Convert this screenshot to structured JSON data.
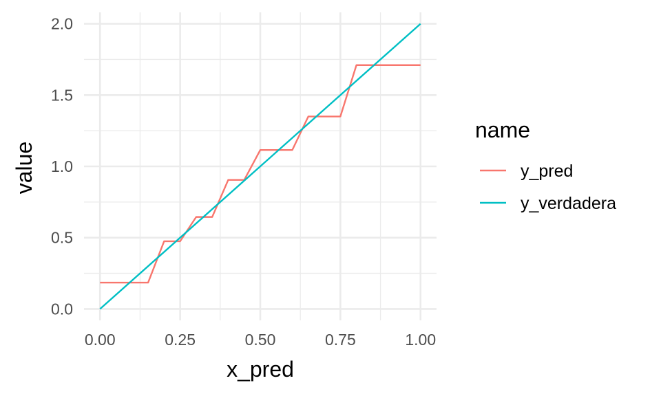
{
  "chart_data": {
    "type": "line",
    "xlabel": "x_pred",
    "ylabel": "value",
    "xlim": [
      -0.05,
      1.05
    ],
    "ylim": [
      -0.08,
      2.08
    ],
    "x_ticks": [
      "0.00",
      "0.25",
      "0.50",
      "0.75",
      "1.00"
    ],
    "x_tick_values": [
      0,
      0.25,
      0.5,
      0.75,
      1.0
    ],
    "y_ticks": [
      "0.0",
      "0.5",
      "1.0",
      "1.5",
      "2.0"
    ],
    "y_tick_values": [
      0,
      0.5,
      1.0,
      1.5,
      2.0
    ],
    "grid": true,
    "legend": {
      "title": "name",
      "position": "right"
    },
    "series": [
      {
        "name": "y_pred",
        "color": "#F8766D",
        "points": [
          [
            0.0,
            0.185
          ],
          [
            0.15,
            0.185
          ],
          [
            0.2,
            0.475
          ],
          [
            0.25,
            0.475
          ],
          [
            0.3,
            0.645
          ],
          [
            0.35,
            0.645
          ],
          [
            0.4,
            0.905
          ],
          [
            0.45,
            0.905
          ],
          [
            0.5,
            1.115
          ],
          [
            0.6,
            1.115
          ],
          [
            0.65,
            1.35
          ],
          [
            0.75,
            1.35
          ],
          [
            0.8,
            1.71
          ],
          [
            1.0,
            1.71
          ]
        ]
      },
      {
        "name": "y_verdadera",
        "color": "#00BFC4",
        "points": [
          [
            0.0,
            0.0
          ],
          [
            1.0,
            2.0
          ]
        ]
      }
    ]
  }
}
